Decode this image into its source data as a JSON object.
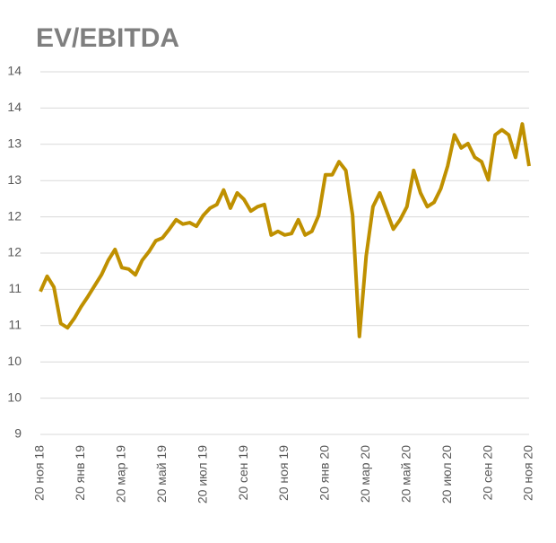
{
  "chart_data": {
    "type": "line",
    "title": "EV/EBITDA",
    "categories": [
      "20 ноя 18",
      null,
      null,
      null,
      null,
      null,
      "20 янв 19",
      null,
      null,
      null,
      null,
      null,
      "20 мар 19",
      null,
      null,
      null,
      null,
      null,
      "20 май 19",
      null,
      null,
      null,
      null,
      null,
      "20 июл 19",
      null,
      null,
      null,
      null,
      null,
      "20 сен 19",
      null,
      null,
      null,
      null,
      null,
      "20 ноя 19",
      null,
      null,
      null,
      null,
      null,
      "20 янв 20",
      null,
      null,
      null,
      null,
      null,
      "20 мар 20",
      null,
      null,
      null,
      null,
      null,
      "20 май 20",
      null,
      null,
      null,
      null,
      null,
      "20 июл 20",
      null,
      null,
      null,
      null,
      null,
      "20 сен 20",
      null,
      null,
      null,
      null,
      null,
      "20 ноя 20"
    ],
    "series": [
      {
        "name": "EV/EBITDA",
        "color": "#bf9000",
        "values": [
          10.97,
          11.18,
          11.03,
          10.53,
          10.47,
          10.6,
          10.76,
          10.9,
          11.05,
          11.2,
          11.4,
          11.55,
          11.3,
          11.28,
          11.2,
          11.4,
          11.52,
          11.67,
          11.71,
          11.83,
          11.96,
          11.9,
          11.92,
          11.87,
          12.02,
          12.12,
          12.17,
          12.37,
          12.12,
          12.33,
          12.24,
          12.08,
          12.14,
          12.17,
          11.75,
          11.8,
          11.75,
          11.77,
          11.96,
          11.75,
          11.8,
          12.02,
          12.58,
          12.58,
          12.76,
          12.64,
          12.02,
          10.35,
          11.46,
          12.14,
          12.33,
          12.08,
          11.83,
          11.96,
          12.14,
          12.64,
          12.33,
          12.14,
          12.2,
          12.39,
          12.7,
          13.13,
          12.95,
          13.01,
          12.82,
          12.76,
          12.51,
          13.13,
          13.2,
          13.13,
          12.82,
          13.28,
          12.7
        ]
      }
    ],
    "ylim": [
      9,
      14
    ],
    "yticks": [
      {
        "value": 9,
        "label": "9"
      },
      {
        "value": 9.5,
        "label": "10"
      },
      {
        "value": 10,
        "label": "10"
      },
      {
        "value": 10.5,
        "label": "11"
      },
      {
        "value": 11,
        "label": "11"
      },
      {
        "value": 11.5,
        "label": "12"
      },
      {
        "value": 12,
        "label": "12"
      },
      {
        "value": 12.5,
        "label": "13"
      },
      {
        "value": 13,
        "label": "13"
      },
      {
        "value": 13.5,
        "label": "14"
      },
      {
        "value": 14,
        "label": "14"
      }
    ],
    "grid": true
  }
}
